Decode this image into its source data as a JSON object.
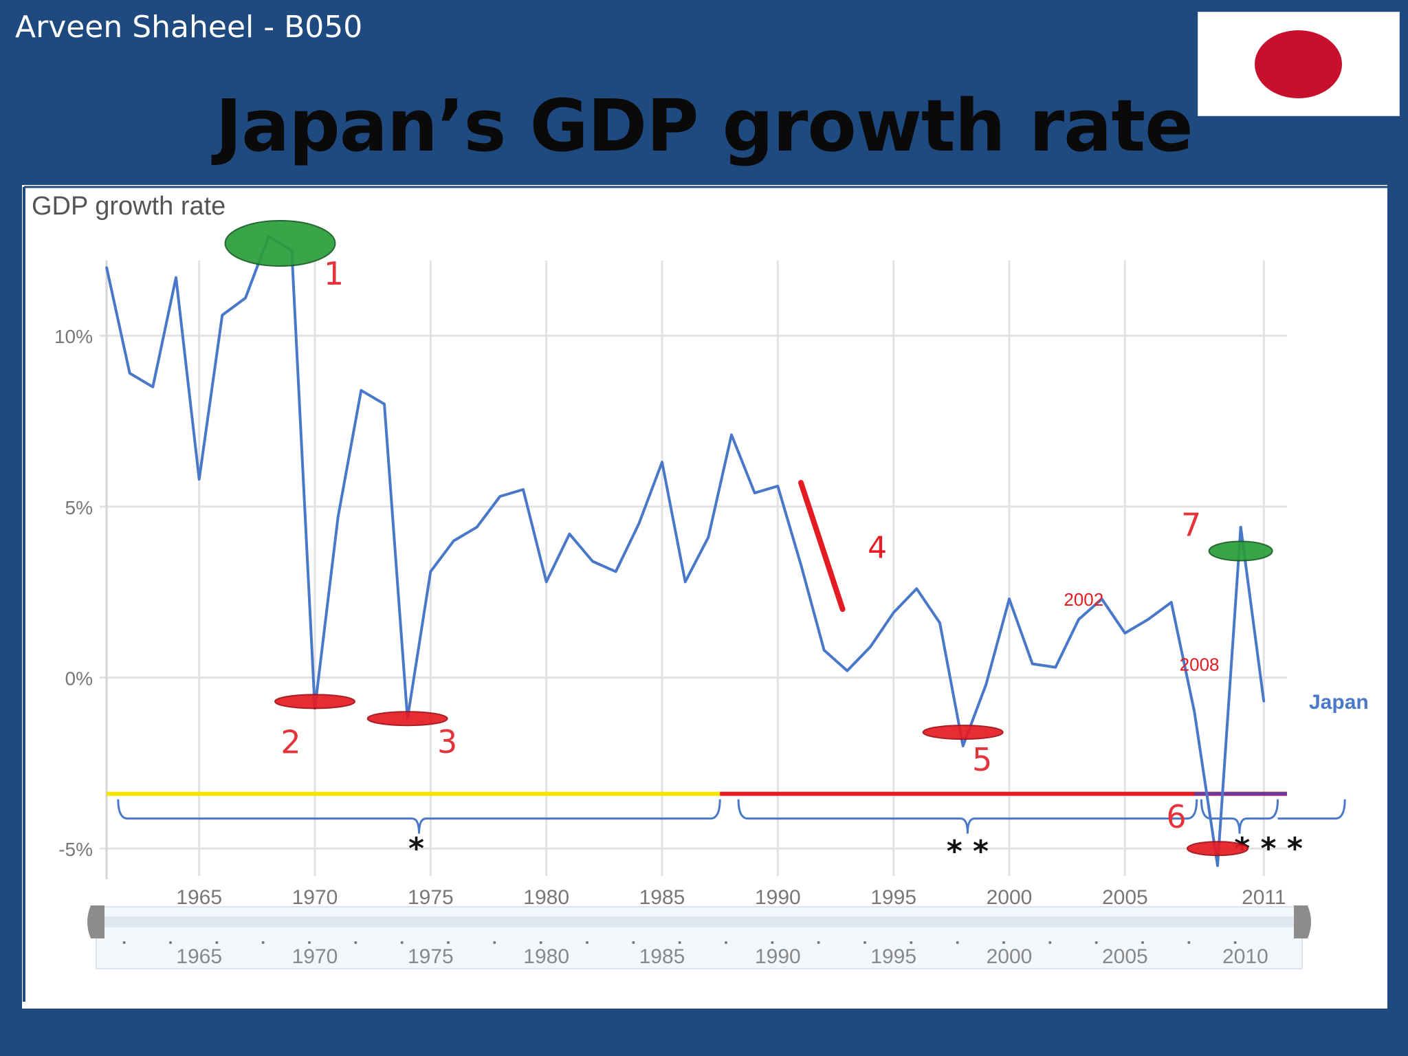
{
  "slide": {
    "author": "Arveen Shaheel - B050",
    "title": "Japan’s GDP growth rate",
    "flag_icon": "japan-flag-icon",
    "background_color": "#1f4a80"
  },
  "chart_data": {
    "type": "line",
    "title": "GDP growth rate",
    "xlabel": "",
    "ylabel": "",
    "xlim": [
      1961,
      2012
    ],
    "ylim": [
      -5.7,
      12.8
    ],
    "x_ticks": [
      "1965",
      "1970",
      "1975",
      "1980",
      "1985",
      "1990",
      "1995",
      "2000",
      "2005",
      "2011"
    ],
    "y_ticks": [
      "10%",
      "5%",
      "0%",
      "-5%"
    ],
    "y_tick_values": [
      10,
      5,
      0,
      -5
    ],
    "grid": true,
    "series": [
      {
        "name": "Japan",
        "color": "#4a78c8",
        "x": [
          1961,
          1962,
          1963,
          1964,
          1965,
          1966,
          1967,
          1968,
          1969,
          1970,
          1971,
          1972,
          1973,
          1974,
          1975,
          1976,
          1977,
          1978,
          1979,
          1980,
          1981,
          1982,
          1983,
          1984,
          1985,
          1986,
          1987,
          1988,
          1989,
          1990,
          1991,
          1992,
          1993,
          1994,
          1995,
          1996,
          1997,
          1998,
          1999,
          2000,
          2001,
          2002,
          2003,
          2004,
          2005,
          2006,
          2007,
          2008,
          2009,
          2010,
          2011
        ],
        "y": [
          12.0,
          8.9,
          8.5,
          11.7,
          5.8,
          10.6,
          11.1,
          12.9,
          12.5,
          -0.9,
          4.7,
          8.4,
          8.0,
          -1.2,
          3.1,
          4.0,
          4.4,
          5.3,
          5.5,
          2.8,
          4.2,
          3.4,
          3.1,
          4.5,
          6.3,
          2.8,
          4.1,
          7.1,
          5.4,
          5.6,
          3.3,
          0.8,
          0.2,
          0.9,
          1.9,
          2.6,
          1.6,
          -2.0,
          -0.2,
          2.3,
          0.4,
          0.3,
          1.7,
          2.3,
          1.3,
          1.7,
          2.2,
          -1.0,
          -5.5,
          4.4,
          -0.7
        ]
      }
    ],
    "annotations": [
      {
        "label": "1",
        "kind": "peak",
        "x": 1968.5,
        "y": 12.7,
        "color": "#2a9d3a"
      },
      {
        "label": "2",
        "kind": "trough",
        "x": 1970,
        "y": -0.7,
        "color": "#e51b23"
      },
      {
        "label": "3",
        "kind": "trough",
        "x": 1974,
        "y": -1.2,
        "color": "#e51b23"
      },
      {
        "label": "4",
        "kind": "decline",
        "x": 1991.5,
        "y": 3.9,
        "color": "#e51b23"
      },
      {
        "label": "5",
        "kind": "trough",
        "x": 1998,
        "y": -1.6,
        "color": "#e51b23"
      },
      {
        "label": "6",
        "kind": "trough",
        "x": 2009,
        "y": -5.0,
        "color": "#e51b23"
      },
      {
        "label": "7",
        "kind": "peak",
        "x": 2010,
        "y": 3.7,
        "color": "#2a9d3a"
      },
      {
        "label": "2002",
        "kind": "note",
        "x": 2002,
        "y": 2.1,
        "color": "#e51b23"
      },
      {
        "label": "2008",
        "kind": "note",
        "x": 2007,
        "y": 0.2,
        "color": "#e51b23"
      }
    ],
    "periods": [
      {
        "from": 1961,
        "to": 1987.5,
        "color": "#f5e400"
      },
      {
        "from": 1987.5,
        "to": 2012,
        "color": "#e51b23"
      }
    ],
    "period_markers": [
      "*",
      "* *",
      "* * *"
    ],
    "navigator_ticks": [
      "1965",
      "1970",
      "1975",
      "1980",
      "1985",
      "1990",
      "1995",
      "2000",
      "2005",
      "2010"
    ]
  }
}
